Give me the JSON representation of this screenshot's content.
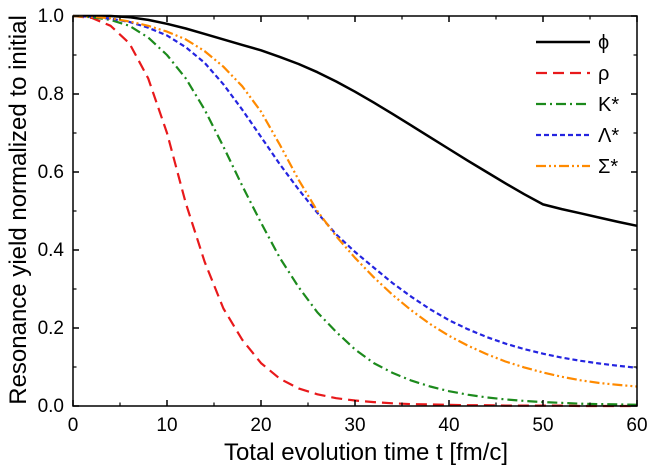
{
  "chart_data": {
    "type": "line",
    "title": "",
    "xlabel": "Total evolution time t [fm/c]",
    "ylabel": "Resonance yield normalized to initial",
    "xlim": [
      0,
      60
    ],
    "ylim": [
      0,
      1.0
    ],
    "xticks": [
      "0",
      "10",
      "20",
      "30",
      "40",
      "50",
      "60"
    ],
    "yticks": [
      "0.0",
      "0.2",
      "0.4",
      "0.6",
      "0.8",
      "1.0"
    ],
    "grid": false,
    "legend_position": "top-right",
    "x": [
      0,
      2,
      4,
      6,
      8,
      10,
      12,
      14,
      16,
      18,
      20,
      22,
      24,
      26,
      28,
      30,
      32,
      34,
      36,
      38,
      40,
      42,
      44,
      46,
      48,
      50,
      52,
      54,
      56,
      58,
      60
    ],
    "series": [
      {
        "name": "ϕ",
        "color": "#000000",
        "dash": "solid",
        "values": [
          1.0,
          1.0,
          1.0,
          0.997,
          0.99,
          0.98,
          0.968,
          0.954,
          0.94,
          0.926,
          0.912,
          0.895,
          0.877,
          0.856,
          0.832,
          0.806,
          0.778,
          0.749,
          0.719,
          0.689,
          0.659,
          0.629,
          0.6,
          0.571,
          0.543,
          0.517,
          0.505,
          0.494,
          0.483,
          0.472,
          0.462
        ]
      },
      {
        "name": "ρ",
        "color": "#e8191b",
        "dash": "long-dash",
        "values": [
          1.0,
          0.995,
          0.975,
          0.93,
          0.84,
          0.7,
          0.52,
          0.37,
          0.25,
          0.17,
          0.11,
          0.07,
          0.045,
          0.03,
          0.02,
          0.014,
          0.01,
          0.007,
          0.005,
          0.004,
          0.003,
          0.002,
          0.002,
          0.001,
          0.001,
          0.001,
          0.001,
          0.0,
          0.0,
          0.0,
          0.0
        ]
      },
      {
        "name": "K*",
        "color": "#1c8a1c",
        "dash": "dash-dot",
        "values": [
          1.0,
          0.997,
          0.99,
          0.975,
          0.945,
          0.9,
          0.84,
          0.76,
          0.665,
          0.565,
          0.47,
          0.38,
          0.305,
          0.24,
          0.19,
          0.145,
          0.11,
          0.085,
          0.065,
          0.05,
          0.038,
          0.029,
          0.022,
          0.017,
          0.013,
          0.01,
          0.008,
          0.006,
          0.005,
          0.004,
          0.003
        ]
      },
      {
        "name": "Λ*",
        "color": "#2424e0",
        "dash": "short-dash",
        "values": [
          1.0,
          0.998,
          0.993,
          0.985,
          0.97,
          0.95,
          0.92,
          0.88,
          0.825,
          0.76,
          0.69,
          0.62,
          0.555,
          0.495,
          0.44,
          0.395,
          0.355,
          0.315,
          0.28,
          0.248,
          0.22,
          0.197,
          0.177,
          0.16,
          0.146,
          0.134,
          0.124,
          0.116,
          0.109,
          0.103,
          0.098
        ]
      },
      {
        "name": "Σ*",
        "color": "#ff8a00",
        "dash": "dash-dot-dot",
        "values": [
          1.0,
          0.998,
          0.994,
          0.986,
          0.975,
          0.96,
          0.94,
          0.91,
          0.87,
          0.82,
          0.755,
          0.67,
          0.58,
          0.5,
          0.435,
          0.38,
          0.33,
          0.285,
          0.245,
          0.21,
          0.18,
          0.155,
          0.133,
          0.114,
          0.099,
          0.086,
          0.075,
          0.066,
          0.059,
          0.054,
          0.05
        ]
      }
    ]
  }
}
